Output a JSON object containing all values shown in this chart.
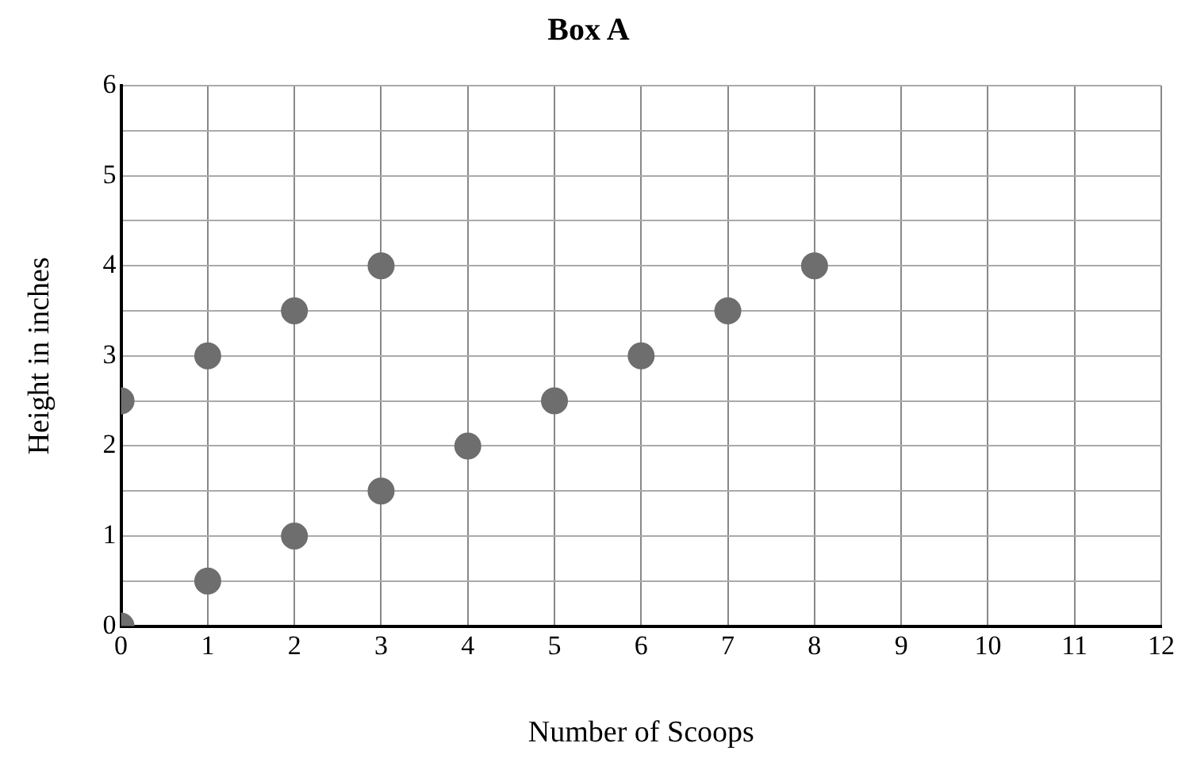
{
  "chart_data": {
    "type": "scatter",
    "title": "Box A",
    "xlabel": "Number of Scoops",
    "ylabel": "Height in inches",
    "x": [
      0,
      1,
      2,
      3,
      4,
      5,
      6,
      7,
      8,
      0,
      1,
      2,
      3
    ],
    "values": [
      0,
      0.5,
      1,
      1.5,
      2,
      2.5,
      3,
      3.5,
      4,
      2.5,
      3,
      3.5,
      4
    ],
    "color": "#6e6e6e",
    "marker": "circle",
    "xlim": [
      0,
      12
    ],
    "xticks": [
      0,
      1,
      2,
      3,
      4,
      5,
      6,
      7,
      8,
      9,
      10,
      11,
      12
    ],
    "ylim": [
      0,
      6
    ],
    "yticks": [
      0,
      {
        "value": 0.5,
        "label": null
      },
      1,
      {
        "value": 1.5,
        "label": null
      },
      2,
      {
        "value": 2.5,
        "label": null
      },
      3,
      {
        "value": 3.5,
        "label": null
      },
      4,
      {
        "value": 4.5,
        "label": null
      },
      5,
      {
        "value": 5.5,
        "label": null
      },
      6
    ],
    "grid": true,
    "legend": false
  }
}
